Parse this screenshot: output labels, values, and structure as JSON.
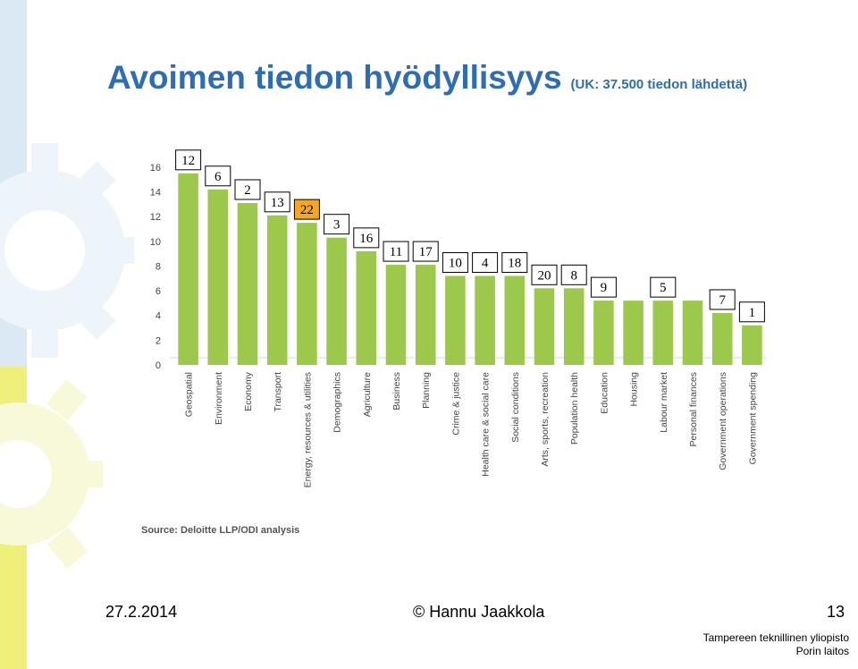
{
  "slide": {
    "title": "Avoimen tiedon hyödyllisyys",
    "subtitle": "(UK: 37.500 tiedon lähdettä)",
    "date": "27.2.2014",
    "author": "© Hannu Jaakkola",
    "page": "13",
    "org_line1": "Tampereen teknillinen yliopisto",
    "org_line2": "Porin laitos"
  },
  "colors": {
    "title": "#2e6db4",
    "bar": "#9cc94c",
    "highlight_box": "#f5a623",
    "stripe_blue": "#dbe9f5",
    "stripe_yellow": "#eef07a"
  },
  "chart_data": {
    "type": "bar",
    "categories": [
      "Geospatial",
      "Environment",
      "Economy",
      "Transport",
      "Energy, resources & utilities",
      "Demographics",
      "Agriculture",
      "Business",
      "Planning",
      "Crime & justice",
      "Health care & social care",
      "Social conditions",
      "Arts, sports, recreation",
      "Population health",
      "Education",
      "Housing",
      "Labour market",
      "Personal finances",
      "Government operations",
      "Government spending"
    ],
    "values": [
      15.5,
      14.2,
      13.1,
      12.1,
      11.5,
      10.3,
      9.2,
      8.1,
      8.1,
      7.2,
      7.2,
      7.2,
      6.2,
      6.2,
      5.2,
      5.2,
      5.2,
      5.2,
      4.2,
      3.2
    ],
    "rank_labels": [
      "12",
      "6",
      "2",
      "13",
      "22",
      "3",
      "16",
      "11",
      "17",
      "10",
      "4",
      "18",
      "20",
      "8",
      "9",
      "5",
      "7",
      "1"
    ],
    "highlighted_rank": "22",
    "yticks": [
      "0",
      "2",
      "4",
      "6",
      "8",
      "10",
      "12",
      "14",
      "16"
    ],
    "ylim": [
      0,
      16.5
    ],
    "source": "Source: Deloitte LLP/ODI analysis",
    "grid": false
  }
}
